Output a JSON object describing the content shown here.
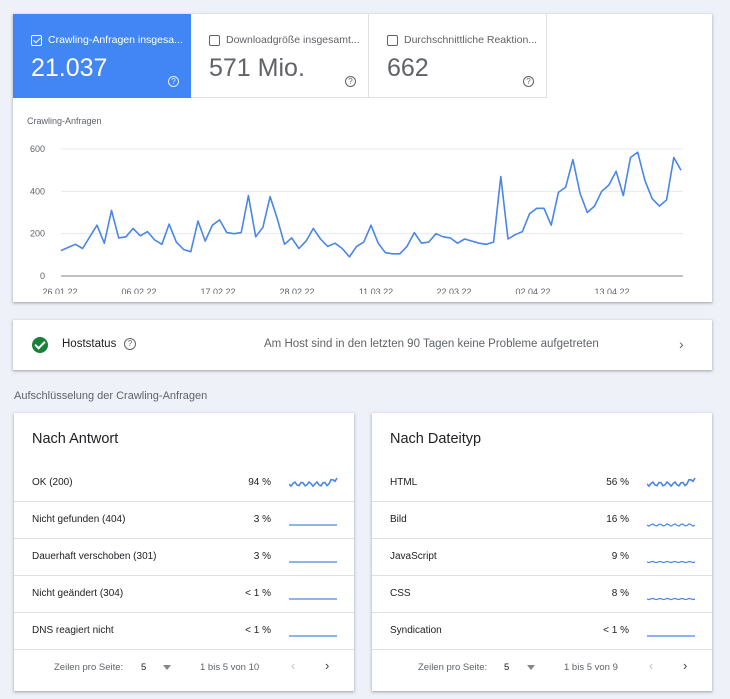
{
  "metrics": [
    {
      "label": "Crawling-Anfragen insgesa...",
      "value": "21.037",
      "checked": true
    },
    {
      "label": "Downloadgröße insgesamt...",
      "value": "571 Mio.",
      "checked": false
    },
    {
      "label": "Durchschnittliche Reaktion...",
      "value": "662",
      "checked": false
    }
  ],
  "help_glyph": "?",
  "colors": {
    "accent": "#4285f4",
    "ok_green": "#188038",
    "line": "#4a86e8"
  },
  "chart_data": {
    "type": "line",
    "ylabel": "Crawling-Anfragen",
    "ylim": [
      0,
      600
    ],
    "yticks": [
      "600",
      "400",
      "200",
      "0"
    ],
    "xticks": [
      "26.01.22",
      "06.02.22",
      "17.02.22",
      "28.02.22",
      "11.03.22",
      "22.03.22",
      "02.04.22",
      "13.04.22"
    ],
    "grid": true,
    "series": [
      {
        "values": [
          120,
          135,
          150,
          130,
          185,
          240,
          155,
          310,
          180,
          185,
          225,
          190,
          210,
          170,
          150,
          245,
          160,
          125,
          115,
          260,
          165,
          240,
          265,
          205,
          200,
          205,
          380,
          185,
          230,
          375,
          270,
          150,
          180,
          130,
          165,
          225,
          175,
          140,
          155,
          130,
          90,
          140,
          160,
          240,
          155,
          110,
          105,
          105,
          140,
          205,
          155,
          160,
          200,
          185,
          180,
          155,
          175,
          165,
          155,
          150,
          160,
          470,
          175,
          195,
          210,
          295,
          320,
          320,
          240,
          395,
          420,
          550,
          390,
          300,
          330,
          400,
          430,
          495,
          380,
          560,
          585,
          450,
          365,
          330,
          360,
          560,
          500
        ]
      }
    ]
  },
  "host_status": {
    "title": "Hoststatus",
    "message": "Am Host sind in den letzten 90 Tagen keine Probleme aufgetreten",
    "chevron": "›"
  },
  "breakdown_title": "Aufschlüsselung der Crawling-Anfragen",
  "by_response": {
    "title": "Nach Antwort",
    "rows": [
      {
        "label": "OK (200)",
        "pct": "94 %"
      },
      {
        "label": "Nicht gefunden (404)",
        "pct": "3 %"
      },
      {
        "label": "Dauerhaft verschoben (301)",
        "pct": "3 %"
      },
      {
        "label": "Nicht geändert (304)",
        "pct": "< 1 %"
      },
      {
        "label": "DNS reagiert nicht",
        "pct": "< 1 %"
      }
    ],
    "pager": {
      "rows_label": "Zeilen pro Seite:",
      "rows_value": "5",
      "range": "1 bis 5 von 10",
      "prev": "‹",
      "next": "›"
    }
  },
  "by_filetype": {
    "title": "Nach Dateityp",
    "rows": [
      {
        "label": "HTML",
        "pct": "56 %"
      },
      {
        "label": "Bild",
        "pct": "16 %"
      },
      {
        "label": "JavaScript",
        "pct": "9 %"
      },
      {
        "label": "CSS",
        "pct": "8 %"
      },
      {
        "label": "Syndication",
        "pct": "< 1 %"
      }
    ],
    "pager": {
      "rows_label": "Zeilen pro Seite:",
      "rows_value": "5",
      "range": "1 bis 5 von 9",
      "prev": "‹",
      "next": "›"
    }
  }
}
